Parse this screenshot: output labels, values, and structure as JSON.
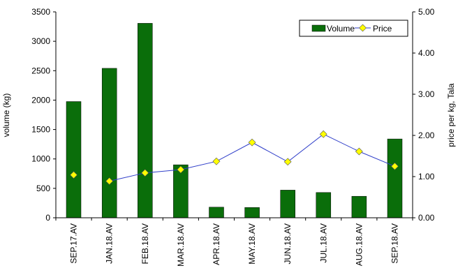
{
  "chart_data": {
    "type": "bar",
    "categories": [
      "SEP.17.AV",
      "JAN.18.AV",
      "FEB.18.AV",
      "MAR.18.AV",
      "APR.18.AV",
      "MAY.18.AV",
      "JUN.18.AV",
      "JUL.18.AV",
      "AUG.18.AV",
      "SEP.18.AV"
    ],
    "series": [
      {
        "name": "Volume",
        "type": "bar",
        "axis": "left",
        "values": [
          1975,
          2540,
          3305,
          900,
          180,
          175,
          470,
          430,
          365,
          1340
        ],
        "color": "#0a6e0a"
      },
      {
        "name": "Price",
        "type": "line",
        "axis": "right",
        "values": [
          1.04,
          0.89,
          1.09,
          1.17,
          1.37,
          1.83,
          1.36,
          2.03,
          1.61,
          1.25
        ],
        "color": "#2f3ec9",
        "marker_color": "#ffff00"
      }
    ],
    "ylabel": "volume (kg)",
    "ylim": [
      0,
      3500
    ],
    "yticks": [
      "0",
      "500",
      "1000",
      "1500",
      "2000",
      "2500",
      "3000",
      "3500"
    ],
    "y2label": "price per kg, Tala",
    "y2lim": [
      0,
      5
    ],
    "y2ticks": [
      "0.00",
      "1.00",
      "2.00",
      "3.00",
      "4.00",
      "5.00"
    ],
    "legend": {
      "position": "top-right",
      "entries": [
        "Volume",
        "Price"
      ]
    },
    "grid": false
  }
}
